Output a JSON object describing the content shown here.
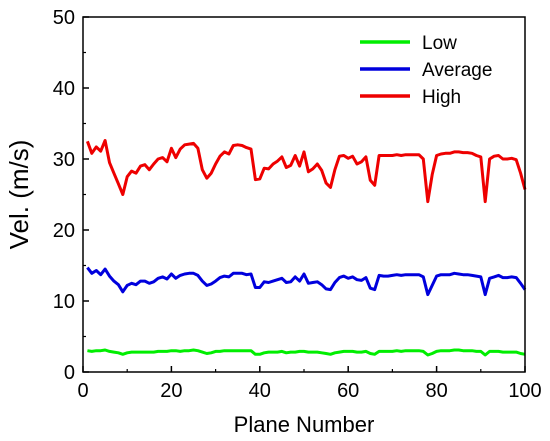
{
  "chart_data": {
    "type": "line",
    "title": "",
    "xlabel": "Plane Number",
    "ylabel": "Vel. (m/s)",
    "xlim": [
      0,
      100
    ],
    "ylim": [
      0,
      50
    ],
    "xticks": [
      0,
      20,
      40,
      60,
      80,
      100
    ],
    "yticks": [
      0,
      10,
      20,
      30,
      40,
      50
    ],
    "grid": false,
    "legend_position": "top-right",
    "series": [
      {
        "name": "Low",
        "color": "#00ee00",
        "x": [
          1,
          2,
          3,
          4,
          5,
          6,
          7,
          8,
          9,
          10,
          11,
          12,
          13,
          14,
          15,
          16,
          17,
          18,
          19,
          20,
          21,
          22,
          23,
          24,
          25,
          26,
          27,
          28,
          29,
          30,
          31,
          32,
          33,
          34,
          35,
          36,
          37,
          38,
          39,
          40,
          41,
          42,
          43,
          44,
          45,
          46,
          47,
          48,
          49,
          50,
          51,
          52,
          53,
          54,
          55,
          56,
          57,
          58,
          59,
          60,
          61,
          62,
          63,
          64,
          65,
          66,
          67,
          68,
          69,
          70,
          71,
          72,
          73,
          74,
          75,
          76,
          77,
          78,
          79,
          80,
          81,
          82,
          83,
          84,
          85,
          86,
          87,
          88,
          89,
          90,
          91,
          92,
          93,
          94,
          95,
          96,
          97,
          98,
          99,
          100
        ],
        "values": [
          3.0,
          2.9,
          3.0,
          3.0,
          3.1,
          2.9,
          2.8,
          2.7,
          2.5,
          2.7,
          2.8,
          2.8,
          2.8,
          2.8,
          2.8,
          2.8,
          2.9,
          2.9,
          2.9,
          3.0,
          3.0,
          2.9,
          3.0,
          3.0,
          3.1,
          3.0,
          2.8,
          2.6,
          2.7,
          2.9,
          2.9,
          3.0,
          3.0,
          3.0,
          3.0,
          3.0,
          3.0,
          3.0,
          2.5,
          2.5,
          2.7,
          2.8,
          2.8,
          2.8,
          2.9,
          2.7,
          2.8,
          2.8,
          2.9,
          2.9,
          2.8,
          2.8,
          2.8,
          2.7,
          2.6,
          2.5,
          2.7,
          2.8,
          2.9,
          2.9,
          2.9,
          2.8,
          2.8,
          2.9,
          2.6,
          2.5,
          2.9,
          2.9,
          2.9,
          2.9,
          3.0,
          2.9,
          3.0,
          3.0,
          3.0,
          3.0,
          2.9,
          2.4,
          2.6,
          2.9,
          3.0,
          3.0,
          3.0,
          3.1,
          3.1,
          3.0,
          3.0,
          3.0,
          2.9,
          2.9,
          2.4,
          2.9,
          2.9,
          2.9,
          2.8,
          2.8,
          2.8,
          2.8,
          2.6,
          2.5
        ]
      },
      {
        "name": "Average",
        "color": "#0000dd",
        "x": [
          1,
          2,
          3,
          4,
          5,
          6,
          7,
          8,
          9,
          10,
          11,
          12,
          13,
          14,
          15,
          16,
          17,
          18,
          19,
          20,
          21,
          22,
          23,
          24,
          25,
          26,
          27,
          28,
          29,
          30,
          31,
          32,
          33,
          34,
          35,
          36,
          37,
          38,
          39,
          40,
          41,
          42,
          43,
          44,
          45,
          46,
          47,
          48,
          49,
          50,
          51,
          52,
          53,
          54,
          55,
          56,
          57,
          58,
          59,
          60,
          61,
          62,
          63,
          64,
          65,
          66,
          67,
          68,
          69,
          70,
          71,
          72,
          73,
          74,
          75,
          76,
          77,
          78,
          79,
          80,
          81,
          82,
          83,
          84,
          85,
          86,
          87,
          88,
          89,
          90,
          91,
          92,
          93,
          94,
          95,
          96,
          97,
          98,
          99,
          100
        ],
        "values": [
          14.7,
          13.9,
          14.3,
          13.7,
          14.5,
          13.5,
          12.8,
          12.3,
          11.3,
          12.2,
          12.5,
          12.3,
          12.8,
          12.8,
          12.5,
          12.7,
          13.2,
          13.4,
          13.1,
          13.8,
          13.2,
          13.6,
          13.8,
          13.9,
          13.9,
          13.6,
          12.8,
          12.2,
          12.4,
          12.8,
          13.3,
          13.5,
          13.4,
          13.9,
          13.9,
          13.9,
          13.7,
          13.8,
          11.9,
          11.9,
          12.7,
          12.6,
          12.8,
          13.0,
          13.2,
          12.6,
          12.7,
          13.4,
          12.8,
          13.8,
          12.5,
          12.6,
          12.7,
          12.3,
          11.7,
          11.6,
          12.6,
          13.3,
          13.5,
          13.2,
          13.4,
          13.0,
          12.9,
          13.3,
          11.8,
          11.6,
          13.6,
          13.5,
          13.5,
          13.6,
          13.7,
          13.6,
          13.7,
          13.7,
          13.7,
          13.7,
          13.4,
          10.9,
          12.2,
          13.5,
          13.7,
          13.7,
          13.7,
          13.9,
          13.8,
          13.7,
          13.7,
          13.6,
          13.5,
          13.4,
          10.9,
          13.2,
          13.4,
          13.6,
          13.3,
          13.3,
          13.4,
          13.3,
          12.5,
          11.6
        ]
      },
      {
        "name": "High",
        "color": "#ee0000",
        "x": [
          1,
          2,
          3,
          4,
          5,
          6,
          7,
          8,
          9,
          10,
          11,
          12,
          13,
          14,
          15,
          16,
          17,
          18,
          19,
          20,
          21,
          22,
          23,
          24,
          25,
          26,
          27,
          28,
          29,
          30,
          31,
          32,
          33,
          34,
          35,
          36,
          37,
          38,
          39,
          40,
          41,
          42,
          43,
          44,
          45,
          46,
          47,
          48,
          49,
          50,
          51,
          52,
          53,
          54,
          55,
          56,
          57,
          58,
          59,
          60,
          61,
          62,
          63,
          64,
          65,
          66,
          67,
          68,
          69,
          70,
          71,
          72,
          73,
          74,
          75,
          76,
          77,
          78,
          79,
          80,
          81,
          82,
          83,
          84,
          85,
          86,
          87,
          88,
          89,
          90,
          91,
          92,
          93,
          94,
          95,
          96,
          97,
          98,
          99,
          100
        ],
        "values": [
          32.5,
          30.8,
          31.7,
          31.1,
          32.6,
          29.5,
          28.0,
          26.5,
          25.0,
          27.5,
          28.3,
          28.0,
          29.0,
          29.2,
          28.5,
          29.3,
          30.0,
          30.2,
          29.6,
          31.5,
          30.2,
          31.4,
          32.0,
          32.1,
          32.2,
          31.5,
          28.5,
          27.3,
          28.0,
          29.3,
          30.4,
          31.0,
          30.7,
          31.9,
          32.0,
          31.9,
          31.6,
          31.4,
          27.1,
          27.2,
          28.7,
          28.6,
          29.3,
          29.7,
          30.3,
          28.8,
          29.1,
          30.5,
          29.0,
          31.0,
          28.2,
          28.6,
          29.3,
          28.4,
          26.6,
          26.0,
          28.5,
          30.4,
          30.5,
          30.1,
          30.4,
          29.3,
          29.6,
          30.3,
          27.0,
          26.3,
          30.5,
          30.5,
          30.5,
          30.5,
          30.6,
          30.5,
          30.6,
          30.6,
          30.6,
          30.6,
          30.0,
          24.0,
          27.8,
          30.5,
          30.7,
          30.8,
          30.8,
          31.0,
          31.0,
          30.9,
          30.9,
          30.8,
          30.5,
          30.3,
          24.0,
          30.0,
          30.4,
          30.5,
          30.0,
          30.0,
          30.1,
          29.9,
          28.0,
          25.7
        ]
      }
    ]
  }
}
